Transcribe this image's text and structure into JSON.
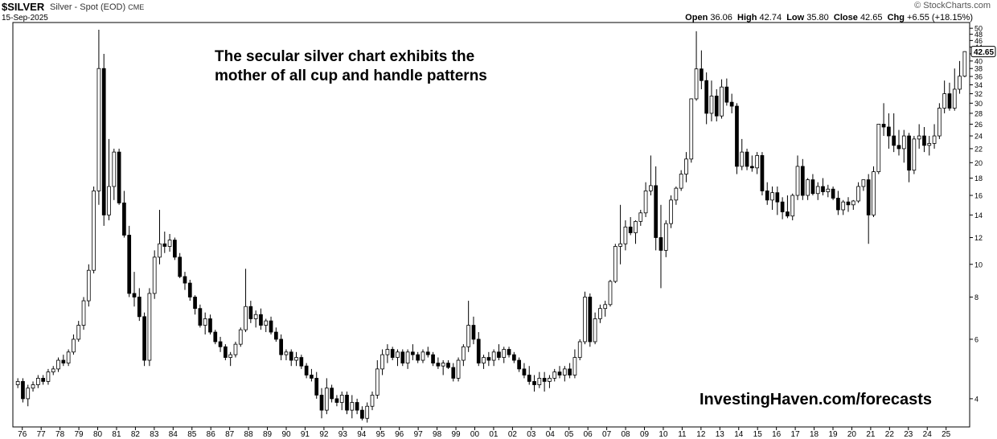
{
  "header": {
    "symbol": "$SILVER",
    "description": "Silver - Spot (EOD)",
    "exchange": "CME",
    "date": "15-Sep-2025",
    "brand": "© StockCharts.com",
    "open_label": "Open",
    "open": "36.06",
    "high_label": "High",
    "high": "42.74",
    "low_label": "Low",
    "low": "35.80",
    "close_label": "Close",
    "close": "42.65",
    "chg_label": "Chg",
    "chg": "+6.55 (+18.15%)"
  },
  "annotations": {
    "headline_line1": "The secular silver chart exhibits the",
    "headline_line2": "mother of all cup and handle patterns",
    "watermark": "InvestingHaven.com/forecasts"
  },
  "chart_data": {
    "type": "candlestick",
    "scale": "log",
    "ylim": [
      3.3,
      52
    ],
    "y_ticks": [
      4,
      6,
      8,
      10,
      12,
      14,
      16,
      18,
      20,
      22,
      24,
      26,
      28,
      30,
      32,
      34,
      36,
      38,
      40,
      42,
      44,
      46,
      48,
      50
    ],
    "last_price_label": "42.65",
    "x_tick_labels": [
      "76",
      "77",
      "78",
      "79",
      "80",
      "81",
      "82",
      "83",
      "84",
      "85",
      "86",
      "87",
      "88",
      "89",
      "90",
      "91",
      "92",
      "93",
      "94",
      "95",
      "96",
      "97",
      "98",
      "99",
      "00",
      "01",
      "02",
      "03",
      "04",
      "05",
      "06",
      "07",
      "08",
      "09",
      "10",
      "11",
      "12",
      "13",
      "14",
      "15",
      "16",
      "17",
      "18",
      "19",
      "20",
      "21",
      "22",
      "23",
      "24",
      "25"
    ],
    "period": "quarterly",
    "columns": [
      "open",
      "high",
      "low",
      "close"
    ],
    "candles": [
      [
        4.4,
        4.6,
        4.3,
        4.5
      ],
      [
        4.5,
        4.6,
        3.9,
        4.0
      ],
      [
        4.0,
        4.4,
        3.8,
        4.3
      ],
      [
        4.3,
        4.5,
        4.2,
        4.4
      ],
      [
        4.4,
        4.7,
        4.3,
        4.6
      ],
      [
        4.6,
        4.7,
        4.4,
        4.5
      ],
      [
        4.5,
        4.9,
        4.4,
        4.8
      ],
      [
        4.8,
        5.0,
        4.7,
        4.9
      ],
      [
        4.9,
        5.3,
        4.8,
        5.2
      ],
      [
        5.2,
        5.4,
        5.0,
        5.1
      ],
      [
        5.1,
        5.6,
        5.0,
        5.5
      ],
      [
        5.5,
        6.2,
        5.4,
        6.0
      ],
      [
        6.0,
        6.8,
        5.9,
        6.6
      ],
      [
        6.6,
        8.0,
        6.4,
        7.8
      ],
      [
        7.8,
        10.0,
        7.5,
        9.6
      ],
      [
        9.6,
        17.0,
        9.4,
        16.5
      ],
      [
        16.5,
        49.5,
        15.0,
        38.0
      ],
      [
        38.0,
        42.0,
        13.0,
        14.0
      ],
      [
        14.0,
        23.5,
        13.5,
        17.0
      ],
      [
        17.0,
        22.0,
        15.5,
        21.5
      ],
      [
        21.5,
        22.0,
        15.0,
        15.2
      ],
      [
        15.2,
        16.5,
        12.0,
        12.2
      ],
      [
        12.2,
        13.0,
        8.0,
        8.2
      ],
      [
        8.2,
        9.5,
        7.5,
        8.0
      ],
      [
        8.0,
        8.5,
        6.8,
        7.0
      ],
      [
        7.0,
        7.2,
        5.0,
        5.2
      ],
      [
        5.2,
        8.5,
        5.0,
        8.2
      ],
      [
        8.2,
        11.0,
        7.9,
        10.5
      ],
      [
        10.5,
        14.5,
        10.0,
        11.5
      ],
      [
        11.5,
        12.5,
        10.8,
        11.3
      ],
      [
        11.3,
        12.3,
        10.9,
        11.8
      ],
      [
        11.8,
        12.0,
        10.3,
        10.5
      ],
      [
        10.5,
        10.8,
        9.1,
        9.2
      ],
      [
        9.2,
        9.5,
        8.4,
        8.8
      ],
      [
        8.8,
        9.0,
        7.8,
        8.0
      ],
      [
        8.0,
        8.1,
        7.1,
        7.4
      ],
      [
        7.4,
        7.6,
        6.5,
        6.6
      ],
      [
        6.6,
        7.2,
        6.2,
        6.9
      ],
      [
        6.9,
        7.1,
        6.2,
        6.3
      ],
      [
        6.3,
        6.4,
        5.8,
        5.9
      ],
      [
        5.9,
        6.1,
        5.5,
        5.7
      ],
      [
        5.7,
        5.8,
        5.2,
        5.3
      ],
      [
        5.3,
        5.5,
        5.0,
        5.4
      ],
      [
        5.4,
        5.9,
        5.3,
        5.8
      ],
      [
        5.8,
        6.5,
        5.7,
        6.4
      ],
      [
        6.4,
        9.7,
        6.3,
        7.5
      ],
      [
        7.5,
        7.8,
        6.7,
        6.9
      ],
      [
        6.9,
        7.3,
        6.5,
        7.1
      ],
      [
        7.1,
        7.4,
        6.4,
        6.6
      ],
      [
        6.6,
        6.9,
        6.3,
        6.8
      ],
      [
        6.8,
        7.0,
        6.2,
        6.3
      ],
      [
        6.3,
        6.5,
        5.9,
        6.0
      ],
      [
        6.0,
        6.2,
        5.2,
        5.4
      ],
      [
        5.4,
        5.6,
        5.2,
        5.5
      ],
      [
        5.5,
        5.6,
        5.0,
        5.2
      ],
      [
        5.2,
        5.5,
        5.0,
        5.3
      ],
      [
        5.3,
        5.4,
        4.9,
        5.0
      ],
      [
        5.0,
        5.1,
        4.6,
        4.7
      ],
      [
        4.7,
        4.9,
        4.5,
        4.6
      ],
      [
        4.6,
        4.8,
        4.0,
        4.1
      ],
      [
        4.1,
        4.3,
        3.5,
        3.7
      ],
      [
        3.7,
        4.6,
        3.6,
        4.3
      ],
      [
        4.3,
        4.4,
        3.9,
        4.0
      ],
      [
        4.0,
        4.1,
        3.8,
        3.9
      ],
      [
        3.9,
        4.2,
        3.7,
        4.1
      ],
      [
        4.1,
        4.2,
        3.6,
        3.7
      ],
      [
        3.7,
        4.1,
        3.5,
        3.9
      ],
      [
        3.9,
        4.0,
        3.6,
        3.7
      ],
      [
        3.7,
        3.8,
        3.45,
        3.5
      ],
      [
        3.5,
        3.9,
        3.4,
        3.8
      ],
      [
        3.8,
        4.2,
        3.7,
        4.1
      ],
      [
        4.1,
        5.2,
        4.0,
        4.9
      ],
      [
        4.9,
        5.6,
        4.7,
        5.4
      ],
      [
        5.4,
        5.8,
        5.1,
        5.6
      ],
      [
        5.6,
        5.7,
        5.2,
        5.3
      ],
      [
        5.3,
        5.6,
        5.0,
        5.5
      ],
      [
        5.5,
        5.6,
        5.0,
        5.1
      ],
      [
        5.1,
        5.6,
        4.9,
        5.5
      ],
      [
        5.5,
        5.8,
        5.2,
        5.4
      ],
      [
        5.4,
        5.5,
        5.1,
        5.2
      ],
      [
        5.2,
        5.6,
        5.1,
        5.5
      ],
      [
        5.5,
        5.7,
        5.3,
        5.4
      ],
      [
        5.4,
        5.5,
        5.0,
        5.1
      ],
      [
        5.1,
        5.3,
        4.9,
        5.0
      ],
      [
        5.0,
        5.2,
        4.7,
        5.1
      ],
      [
        5.1,
        5.2,
        4.9,
        4.95
      ],
      [
        4.95,
        5.1,
        4.5,
        4.6
      ],
      [
        4.6,
        5.3,
        4.5,
        5.2
      ],
      [
        5.2,
        5.8,
        5.0,
        5.7
      ],
      [
        5.7,
        7.8,
        5.5,
        6.6
      ],
      [
        6.6,
        7.0,
        5.8,
        6.0
      ],
      [
        6.0,
        6.3,
        5.0,
        5.1
      ],
      [
        5.1,
        5.4,
        4.9,
        5.3
      ],
      [
        5.3,
        5.5,
        5.0,
        5.2
      ],
      [
        5.2,
        5.6,
        5.0,
        5.5
      ],
      [
        5.5,
        5.8,
        5.2,
        5.3
      ],
      [
        5.3,
        5.7,
        5.1,
        5.6
      ],
      [
        5.6,
        5.7,
        5.3,
        5.4
      ],
      [
        5.4,
        5.5,
        5.1,
        5.2
      ],
      [
        5.2,
        5.3,
        4.8,
        4.9
      ],
      [
        4.9,
        5.1,
        4.6,
        4.7
      ],
      [
        4.7,
        5.0,
        4.4,
        4.5
      ],
      [
        4.5,
        4.7,
        4.2,
        4.4
      ],
      [
        4.4,
        4.8,
        4.3,
        4.6
      ],
      [
        4.6,
        4.8,
        4.2,
        4.5
      ],
      [
        4.5,
        4.7,
        4.3,
        4.6
      ],
      [
        4.6,
        4.9,
        4.5,
        4.8
      ],
      [
        4.8,
        5.0,
        4.6,
        4.7
      ],
      [
        4.7,
        5.0,
        4.5,
        4.9
      ],
      [
        4.9,
        5.1,
        4.6,
        4.7
      ],
      [
        4.7,
        5.6,
        4.6,
        5.3
      ],
      [
        5.3,
        6.0,
        5.2,
        5.9
      ],
      [
        5.9,
        8.3,
        5.8,
        8.0
      ],
      [
        8.0,
        8.2,
        5.7,
        5.9
      ],
      [
        5.9,
        7.2,
        5.8,
        6.9
      ],
      [
        6.9,
        7.6,
        6.7,
        7.4
      ],
      [
        7.4,
        7.8,
        7.0,
        7.6
      ],
      [
        7.6,
        9.0,
        7.5,
        8.9
      ],
      [
        8.9,
        11.5,
        8.8,
        11.3
      ],
      [
        11.3,
        15.0,
        10.0,
        11.5
      ],
      [
        11.5,
        13.5,
        11.0,
        12.9
      ],
      [
        12.9,
        13.8,
        12.2,
        12.4
      ],
      [
        12.4,
        13.5,
        11.5,
        13.4
      ],
      [
        13.4,
        14.5,
        13.0,
        14.2
      ],
      [
        14.2,
        17.5,
        13.8,
        16.5
      ],
      [
        16.5,
        21.0,
        16.0,
        17.1
      ],
      [
        17.1,
        19.5,
        11.0,
        12.0
      ],
      [
        12.0,
        15.0,
        8.5,
        11.0
      ],
      [
        11.0,
        13.5,
        10.5,
        13.2
      ],
      [
        13.2,
        16.0,
        12.8,
        15.5
      ],
      [
        15.5,
        17.0,
        15.0,
        16.8
      ],
      [
        16.8,
        19.0,
        16.5,
        18.5
      ],
      [
        18.5,
        21.5,
        17.5,
        20.5
      ],
      [
        20.5,
        31.0,
        20.0,
        30.9
      ],
      [
        30.9,
        49.0,
        30.5,
        37.9
      ],
      [
        37.9,
        43.0,
        33.0,
        35.0
      ],
      [
        35.0,
        37.0,
        26.0,
        28.0
      ],
      [
        28.0,
        35.0,
        26.5,
        31.5
      ],
      [
        31.5,
        33.0,
        26.5,
        27.5
      ],
      [
        27.5,
        35.3,
        27.0,
        33.5
      ],
      [
        33.5,
        35.5,
        29.5,
        30.2
      ],
      [
        30.2,
        32.0,
        28.0,
        29.4
      ],
      [
        29.4,
        30.0,
        18.5,
        19.5
      ],
      [
        19.5,
        23.5,
        19.0,
        21.5
      ],
      [
        21.5,
        22.0,
        19.0,
        19.5
      ],
      [
        19.5,
        21.0,
        18.8,
        19.3
      ],
      [
        19.3,
        21.5,
        18.5,
        21.0
      ],
      [
        21.0,
        21.5,
        16.0,
        16.5
      ],
      [
        16.5,
        17.5,
        15.0,
        15.5
      ],
      [
        15.5,
        17.0,
        14.5,
        16.3
      ],
      [
        16.3,
        17.0,
        14.0,
        15.3
      ],
      [
        15.3,
        15.8,
        13.6,
        14.3
      ],
      [
        14.3,
        16.0,
        13.7,
        13.9
      ],
      [
        13.9,
        16.2,
        13.5,
        16.0
      ],
      [
        16.0,
        21.0,
        15.5,
        19.5
      ],
      [
        19.5,
        20.5,
        15.5,
        16.0
      ],
      [
        16.0,
        18.0,
        15.5,
        17.8
      ],
      [
        17.8,
        18.5,
        16.0,
        16.2
      ],
      [
        16.2,
        17.5,
        15.5,
        17.0
      ],
      [
        17.0,
        18.0,
        16.0,
        16.4
      ],
      [
        16.4,
        17.2,
        15.8,
        16.7
      ],
      [
        16.7,
        17.0,
        15.5,
        15.7
      ],
      [
        15.7,
        16.5,
        14.0,
        14.5
      ],
      [
        14.5,
        15.5,
        14.0,
        15.3
      ],
      [
        15.3,
        15.8,
        14.3,
        15.0
      ],
      [
        15.0,
        15.5,
        14.5,
        15.4
      ],
      [
        15.4,
        17.5,
        15.2,
        17.0
      ],
      [
        17.0,
        17.5,
        16.5,
        17.8
      ],
      [
        17.8,
        18.5,
        11.5,
        14.0
      ],
      [
        14.0,
        19.5,
        13.8,
        18.8
      ],
      [
        18.8,
        26.0,
        18.5,
        26.0
      ],
      [
        26.0,
        30.0,
        24.0,
        25.5
      ],
      [
        25.5,
        28.0,
        22.0,
        24.0
      ],
      [
        24.0,
        28.0,
        21.5,
        22.5
      ],
      [
        22.5,
        25.0,
        21.0,
        22.0
      ],
      [
        22.0,
        25.0,
        20.0,
        24.0
      ],
      [
        24.0,
        24.5,
        17.5,
        19.0
      ],
      [
        19.0,
        24.0,
        18.5,
        23.5
      ],
      [
        23.5,
        26.0,
        22.0,
        24.0
      ],
      [
        24.0,
        25.5,
        21.5,
        22.5
      ],
      [
        22.5,
        24.0,
        21.0,
        22.8
      ],
      [
        22.8,
        26.0,
        22.0,
        24.0
      ],
      [
        24.0,
        30.0,
        23.5,
        29.0
      ],
      [
        29.0,
        35.0,
        28.0,
        32.0
      ],
      [
        32.0,
        34.5,
        28.5,
        29.0
      ],
      [
        29.0,
        38.0,
        28.5,
        33.0
      ],
      [
        33.0,
        40.0,
        32.0,
        36.06
      ],
      [
        36.06,
        42.74,
        35.8,
        42.65
      ]
    ]
  }
}
